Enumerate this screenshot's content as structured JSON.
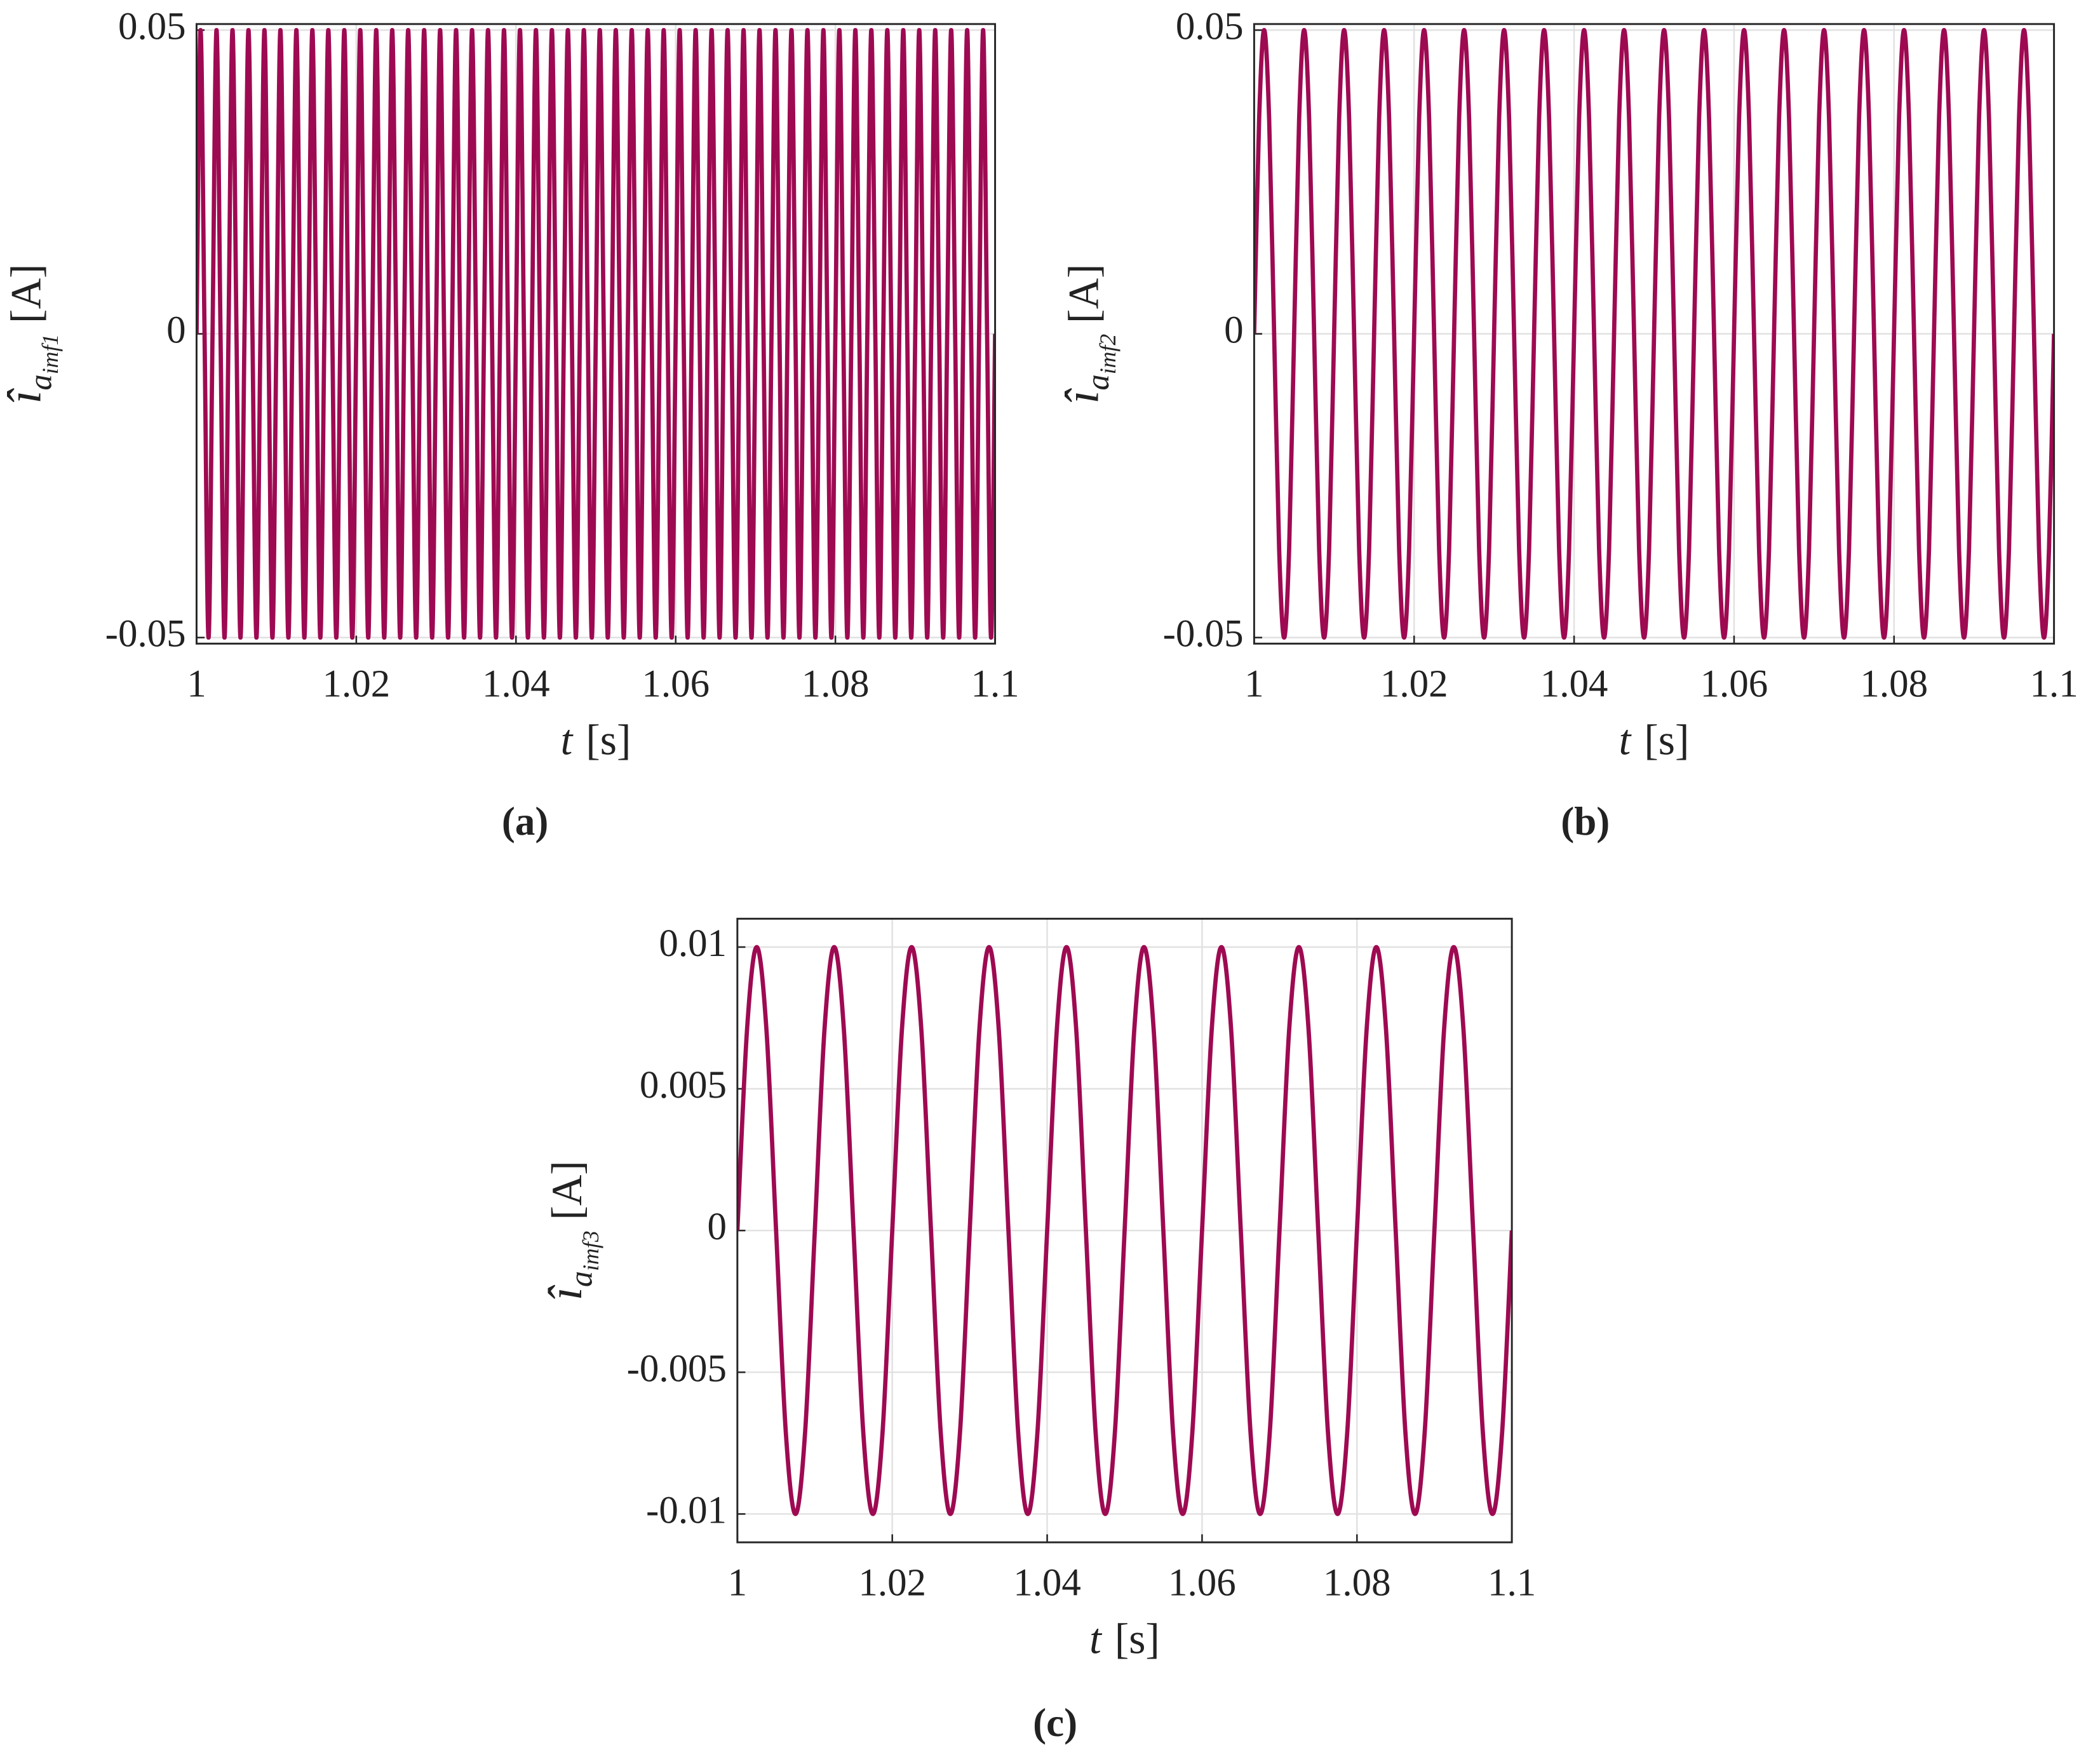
{
  "chart_data": [
    {
      "type": "line",
      "label": "(a)",
      "xlabel": {
        "symbol": "t",
        "unit": "[s]"
      },
      "ylabel": {
        "symbol": "î",
        "sub": "a",
        "subsub": "imf1",
        "unit": "[A]"
      },
      "color": "#9e0a52",
      "grid": true,
      "xlim": [
        1,
        1.1
      ],
      "ylim": [
        -0.051,
        0.051
      ],
      "xticks": [
        1,
        1.02,
        1.04,
        1.06,
        1.08,
        1.1
      ],
      "yticks": [
        0.05,
        0,
        -0.05
      ],
      "x": [
        1,
        1.0005,
        1.001,
        1.0015,
        1.002,
        1.0025,
        1.003,
        1.0035,
        1.004,
        1.0045,
        1.005,
        1.0055,
        1.006,
        1.0065,
        1.007,
        1.0075,
        1.008,
        1.0085,
        1.009,
        1.0095,
        1.01,
        1.0105,
        1.011,
        1.0115,
        1.012,
        1.0125,
        1.013,
        1.0135,
        1.014,
        1.0145,
        1.015,
        1.0155,
        1.016,
        1.0165,
        1.017,
        1.0175,
        1.018,
        1.0185,
        1.019,
        1.0195,
        1.02,
        1.0205,
        1.021,
        1.0215,
        1.022,
        1.0225,
        1.023,
        1.0235,
        1.024,
        1.0245,
        1.025,
        1.0255,
        1.026,
        1.0265,
        1.027,
        1.0275,
        1.028,
        1.0285,
        1.029,
        1.0295,
        1.03,
        1.0305,
        1.031,
        1.0315,
        1.032,
        1.0325,
        1.033,
        1.0335,
        1.034,
        1.0345,
        1.035,
        1.0355,
        1.036,
        1.0365,
        1.037,
        1.0375,
        1.038,
        1.0385,
        1.039,
        1.0395,
        1.04,
        1.0405,
        1.041,
        1.0415,
        1.042,
        1.0425,
        1.043,
        1.0435,
        1.044,
        1.0445,
        1.045,
        1.0455,
        1.046,
        1.0465,
        1.047,
        1.0475,
        1.048,
        1.0485,
        1.049,
        1.0495,
        1.05,
        1.0505,
        1.051,
        1.0515,
        1.052,
        1.0525,
        1.053,
        1.0535,
        1.054,
        1.0545,
        1.055,
        1.0555,
        1.056,
        1.0565,
        1.057,
        1.0575,
        1.058,
        1.0585,
        1.059,
        1.0595,
        1.06,
        1.0605,
        1.061,
        1.0615,
        1.062,
        1.0625,
        1.063,
        1.0635,
        1.064,
        1.0645,
        1.065,
        1.0655,
        1.066,
        1.0665,
        1.067,
        1.0675,
        1.068,
        1.0685,
        1.069,
        1.0695,
        1.07,
        1.0705,
        1.071,
        1.0715,
        1.072,
        1.0725,
        1.073,
        1.0735,
        1.074,
        1.0745,
        1.075,
        1.0755,
        1.076,
        1.0765,
        1.077,
        1.0775,
        1.078,
        1.0785,
        1.079,
        1.0795,
        1.08,
        1.0805,
        1.081,
        1.0815,
        1.082,
        1.0825,
        1.083,
        1.0835,
        1.084,
        1.0845,
        1.085,
        1.0855,
        1.086,
        1.0865,
        1.087,
        1.0875,
        1.088,
        1.0885,
        1.089,
        1.0895,
        1.09,
        1.0905,
        1.091,
        1.0915,
        1.092,
        1.0925,
        1.093,
        1.0935,
        1.094,
        1.0945,
        1.095,
        1.0955,
        1.096,
        1.0965,
        1.097,
        1.0975,
        1.098,
        1.0985,
        1.099,
        1.0995,
        1.1
      ],
      "values": [
        0,
        0.05,
        0,
        -0.05,
        0,
        0.05,
        0,
        -0.05,
        0,
        0.05,
        0,
        -0.05,
        0,
        0.05,
        0,
        -0.05,
        0,
        0.05,
        0,
        -0.05,
        0,
        0.05,
        0,
        -0.05,
        0,
        0.05,
        0,
        -0.05,
        0,
        0.05,
        0,
        -0.05,
        0,
        0.05,
        0,
        -0.05,
        0,
        0.05,
        0,
        -0.05,
        0,
        0.05,
        0,
        -0.05,
        0,
        0.05,
        0,
        -0.05,
        0,
        0.05,
        0,
        -0.05,
        0,
        0.05,
        0,
        -0.05,
        0,
        0.05,
        0,
        -0.05,
        0,
        0.05,
        0,
        -0.05,
        0,
        0.05,
        0,
        -0.05,
        0,
        0.05,
        0,
        -0.05,
        0,
        0.05,
        0,
        -0.05,
        0,
        0.05,
        0,
        -0.05,
        0,
        0.05,
        0,
        -0.05,
        0,
        0.05,
        0,
        -0.05,
        0,
        0.05,
        0,
        -0.05,
        0,
        0.05,
        0,
        -0.05,
        0,
        0.05,
        0,
        -0.05,
        0,
        0.05,
        0,
        -0.05,
        0,
        0.05,
        0,
        -0.05,
        0,
        0.05,
        0,
        -0.05,
        0,
        0.05,
        0,
        -0.05,
        0,
        0.05,
        0,
        -0.05,
        0,
        0.05,
        0,
        -0.05,
        0,
        0.05,
        0,
        -0.05,
        0,
        0.05,
        0,
        -0.05,
        0,
        0.05,
        0,
        -0.05,
        0,
        0.05,
        0,
        -0.05,
        0,
        0.05,
        0,
        -0.05,
        0,
        0.05,
        0,
        -0.05,
        0,
        0.05,
        0,
        -0.05,
        0,
        0.05,
        0,
        -0.05,
        0,
        0.05,
        0,
        -0.05,
        0,
        0.05,
        0,
        -0.05,
        0,
        0.05,
        0,
        -0.05,
        0,
        0.05,
        0,
        -0.05,
        0,
        0.05,
        0,
        -0.05,
        0,
        0.05,
        0,
        -0.05,
        0,
        0.05,
        0,
        -0.05,
        0,
        0.05,
        0,
        -0.05,
        0,
        0.05,
        0,
        -0.05,
        0,
        0.05,
        0,
        -0.05,
        0,
        0.05,
        0,
        -0.05,
        0
      ]
    },
    {
      "type": "line",
      "label": "(b)",
      "xlabel": {
        "symbol": "t",
        "unit": "[s]"
      },
      "ylabel": {
        "symbol": "î",
        "sub": "a",
        "subsub": "imf2",
        "unit": "[A]"
      },
      "color": "#9e0a52",
      "grid": true,
      "xlim": [
        1,
        1.1
      ],
      "ylim": [
        -0.051,
        0.051
      ],
      "xticks": [
        1,
        1.02,
        1.04,
        1.06,
        1.08,
        1.1
      ],
      "yticks": [
        0.05,
        0,
        -0.05
      ],
      "x": [
        1,
        1.000625,
        1.00125,
        1.001875,
        1.0025,
        1.003125,
        1.00375,
        1.004375,
        1.005,
        1.005625,
        1.00625,
        1.006875,
        1.0075,
        1.008125,
        1.00875,
        1.009375,
        1.01,
        1.010625,
        1.01125,
        1.011875,
        1.0125,
        1.013125,
        1.01375,
        1.014375,
        1.015,
        1.015625,
        1.01625,
        1.016875,
        1.0175,
        1.018125,
        1.01875,
        1.019375,
        1.02,
        1.020625,
        1.02125,
        1.021875,
        1.0225,
        1.023125,
        1.02375,
        1.024375,
        1.025,
        1.025625,
        1.02625,
        1.026875,
        1.0275,
        1.028125,
        1.02875,
        1.029375,
        1.03,
        1.030625,
        1.03125,
        1.031875,
        1.0325,
        1.033125,
        1.03375,
        1.034375,
        1.035,
        1.035625,
        1.03625,
        1.036875,
        1.0375,
        1.038125,
        1.03875,
        1.039375,
        1.04,
        1.040625,
        1.04125,
        1.041875,
        1.0425,
        1.043125,
        1.04375,
        1.044375,
        1.045,
        1.045625,
        1.04625,
        1.046875,
        1.0475,
        1.048125,
        1.04875,
        1.049375,
        1.05,
        1.050625,
        1.05125,
        1.051875,
        1.0525,
        1.053125,
        1.05375,
        1.054375,
        1.055,
        1.055625,
        1.05625,
        1.056875,
        1.0575,
        1.058125,
        1.05875,
        1.059375,
        1.06,
        1.060625,
        1.06125,
        1.061875,
        1.0625,
        1.063125,
        1.06375,
        1.064375,
        1.065,
        1.065625,
        1.06625,
        1.066875,
        1.0675,
        1.068125,
        1.06875,
        1.069375,
        1.07,
        1.070625,
        1.07125,
        1.071875,
        1.0725,
        1.073125,
        1.07375,
        1.074375,
        1.075,
        1.075625,
        1.07625,
        1.076875,
        1.0775,
        1.078125,
        1.07875,
        1.079375,
        1.08,
        1.080625,
        1.08125,
        1.081875,
        1.0825,
        1.083125,
        1.08375,
        1.084375,
        1.085,
        1.085625,
        1.08625,
        1.086875,
        1.0875,
        1.088125,
        1.08875,
        1.089375,
        1.09,
        1.090625,
        1.09125,
        1.091875,
        1.0925,
        1.093125,
        1.09375,
        1.094375,
        1.095,
        1.095625,
        1.09625,
        1.096875,
        1.0975,
        1.098125,
        1.09875,
        1.099375,
        1.1
      ],
      "values": [
        0,
        0.0354,
        0.05,
        0.0354,
        0,
        -0.0354,
        -0.05,
        -0.0354,
        0,
        0.0354,
        0.05,
        0.0354,
        0,
        -0.0354,
        -0.05,
        -0.0354,
        0,
        0.0354,
        0.05,
        0.0354,
        0,
        -0.0354,
        -0.05,
        -0.0354,
        0,
        0.0354,
        0.05,
        0.0354,
        0,
        -0.0354,
        -0.05,
        -0.0354,
        0,
        0.0354,
        0.05,
        0.0354,
        0,
        -0.0354,
        -0.05,
        -0.0354,
        0,
        0.0354,
        0.05,
        0.0354,
        0,
        -0.0354,
        -0.05,
        -0.0354,
        0,
        0.0354,
        0.05,
        0.0354,
        0,
        -0.0354,
        -0.05,
        -0.0354,
        0,
        0.0354,
        0.05,
        0.0354,
        0,
        -0.0354,
        -0.05,
        -0.0354,
        0,
        0.0354,
        0.05,
        0.0354,
        0,
        -0.0354,
        -0.05,
        -0.0354,
        0,
        0.0354,
        0.05,
        0.0354,
        0,
        -0.0354,
        -0.05,
        -0.0354,
        0,
        0.0354,
        0.05,
        0.0354,
        0,
        -0.0354,
        -0.05,
        -0.0354,
        0,
        0.0354,
        0.05,
        0.0354,
        0,
        -0.0354,
        -0.05,
        -0.0354,
        0,
        0.0354,
        0.05,
        0.0354,
        0,
        -0.0354,
        -0.05,
        -0.0354,
        0,
        0.0354,
        0.05,
        0.0354,
        0,
        -0.0354,
        -0.05,
        -0.0354,
        0,
        0.0354,
        0.05,
        0.0354,
        0,
        -0.0354,
        -0.05,
        -0.0354,
        0,
        0.0354,
        0.05,
        0.0354,
        0,
        -0.0354,
        -0.05,
        -0.0354,
        0,
        0.0354,
        0.05,
        0.0354,
        0,
        -0.0354,
        -0.05,
        -0.0354,
        0,
        0.0354,
        0.05,
        0.0354,
        0,
        -0.0354,
        -0.05,
        -0.0354,
        0,
        0.0354,
        0.05,
        0.0354,
        0,
        -0.0354,
        -0.05,
        -0.0354,
        0,
        0.0354,
        0.05,
        0.0354,
        0,
        -0.0354,
        -0.05,
        -0.0354,
        0
      ]
    },
    {
      "type": "line",
      "label": "(c)",
      "xlabel": {
        "symbol": "t",
        "unit": "[s]"
      },
      "ylabel": {
        "symbol": "î",
        "sub": "a",
        "subsub": "imf3",
        "unit": "[A]"
      },
      "color": "#9e0a52",
      "grid": true,
      "xlim": [
        1,
        1.1
      ],
      "ylim": [
        -0.011,
        0.011
      ],
      "xticks": [
        1,
        1.02,
        1.04,
        1.06,
        1.08,
        1.1
      ],
      "yticks": [
        0.01,
        0.005,
        0,
        -0.005,
        -0.01
      ],
      "x": [
        1,
        1.00125,
        1.0025,
        1.00375,
        1.005,
        1.00625,
        1.0075,
        1.00875,
        1.01,
        1.01125,
        1.0125,
        1.01375,
        1.015,
        1.01625,
        1.0175,
        1.01875,
        1.02,
        1.02125,
        1.0225,
        1.02375,
        1.025,
        1.02625,
        1.0275,
        1.02875,
        1.03,
        1.03125,
        1.0325,
        1.03375,
        1.035,
        1.03625,
        1.0375,
        1.03875,
        1.04,
        1.04125,
        1.0425,
        1.04375,
        1.045,
        1.04625,
        1.0475,
        1.04875,
        1.05,
        1.05125,
        1.0525,
        1.05375,
        1.055,
        1.05625,
        1.0575,
        1.05875,
        1.06,
        1.06125,
        1.0625,
        1.06375,
        1.065,
        1.06625,
        1.0675,
        1.06875,
        1.07,
        1.07125,
        1.0725,
        1.07375,
        1.075,
        1.07625,
        1.0775,
        1.07875,
        1.08,
        1.08125,
        1.0825,
        1.08375,
        1.085,
        1.08625,
        1.0875,
        1.08875,
        1.09,
        1.09125,
        1.0925,
        1.09375,
        1.095,
        1.09625,
        1.0975,
        1.09875,
        1.1
      ],
      "values": [
        0,
        0.0071,
        0.01,
        0.0071,
        0,
        -0.0071,
        -0.01,
        -0.0071,
        0,
        0.0071,
        0.01,
        0.0071,
        0,
        -0.0071,
        -0.01,
        -0.0071,
        0,
        0.0071,
        0.01,
        0.0071,
        0,
        -0.0071,
        -0.01,
        -0.0071,
        0,
        0.0071,
        0.01,
        0.0071,
        0,
        -0.0071,
        -0.01,
        -0.0071,
        0,
        0.0071,
        0.01,
        0.0071,
        0,
        -0.0071,
        -0.01,
        -0.0071,
        0,
        0.0071,
        0.01,
        0.0071,
        0,
        -0.0071,
        -0.01,
        -0.0071,
        0,
        0.0071,
        0.01,
        0.0071,
        0,
        -0.0071,
        -0.01,
        -0.0071,
        0,
        0.0071,
        0.01,
        0.0071,
        0,
        -0.0071,
        -0.01,
        -0.0071,
        0,
        0.0071,
        0.01,
        0.0071,
        0,
        -0.0071,
        -0.01,
        -0.0071,
        0,
        0.0071,
        0.01,
        0.0071,
        0,
        -0.0071,
        -0.01,
        -0.0071,
        0
      ]
    }
  ]
}
